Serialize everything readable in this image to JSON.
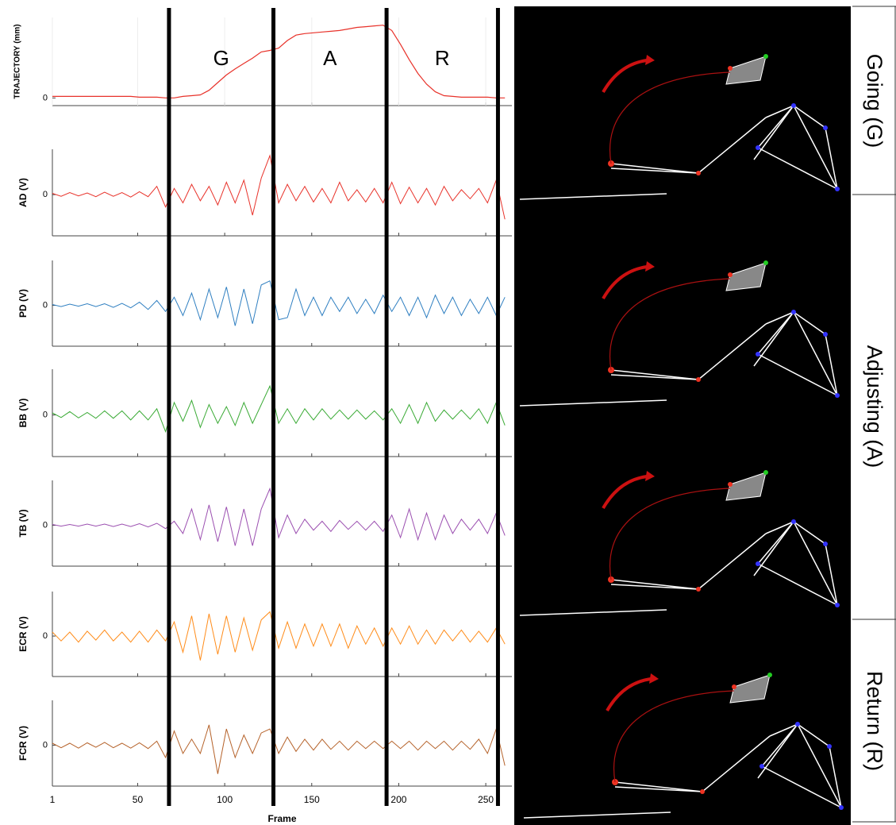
{
  "chart_data": {
    "type": "line",
    "layout": "stacked",
    "x": [
      1,
      6,
      11,
      16,
      21,
      26,
      31,
      36,
      41,
      46,
      51,
      56,
      61,
      66,
      71,
      76,
      81,
      86,
      91,
      96,
      101,
      106,
      111,
      116,
      121,
      126,
      131,
      136,
      141,
      146,
      151,
      156,
      161,
      166,
      171,
      176,
      181,
      186,
      191,
      196,
      201,
      206,
      211,
      216,
      221,
      226,
      231,
      236,
      241,
      246,
      251,
      256,
      261
    ],
    "xlim": [
      1,
      265
    ],
    "xticks": [
      1,
      50,
      100,
      150,
      200,
      250
    ],
    "xlabel": "Frame",
    "phase_bounds": [
      68,
      128,
      193,
      257
    ],
    "phase_labels": [
      "G",
      "A",
      "R"
    ],
    "series": [
      {
        "name": "TRAJECTORY (mm)",
        "color": "#e8322a",
        "ylim": [
          -0.1,
          1.05
        ],
        "yticks": [
          0
        ],
        "values": [
          0.02,
          0.02,
          0.02,
          0.02,
          0.02,
          0.02,
          0.02,
          0.02,
          0.02,
          0.02,
          0.01,
          0.01,
          0.01,
          0,
          0,
          0.02,
          0.03,
          0.04,
          0.1,
          0.2,
          0.3,
          0.38,
          0.45,
          0.52,
          0.6,
          0.62,
          0.65,
          0.75,
          0.82,
          0.84,
          0.85,
          0.86,
          0.87,
          0.88,
          0.9,
          0.92,
          0.93,
          0.94,
          0.95,
          0.88,
          0.7,
          0.5,
          0.32,
          0.18,
          0.08,
          0.03,
          0.02,
          0.01,
          0.01,
          0.01,
          0.01,
          0,
          0
        ]
      },
      {
        "name": "AD (V)",
        "color": "#e8322a",
        "ylim": [
          -1,
          1.1
        ],
        "yticks": [
          0
        ],
        "values": [
          0.03,
          -0.04,
          0.05,
          -0.03,
          0.04,
          -0.05,
          0.06,
          -0.04,
          0.05,
          -0.06,
          0.07,
          -0.05,
          0.2,
          -0.3,
          0.15,
          -0.2,
          0.25,
          -0.15,
          0.2,
          -0.25,
          0.3,
          -0.2,
          0.35,
          -0.5,
          0.4,
          0.95,
          -0.2,
          0.25,
          -0.15,
          0.2,
          -0.18,
          0.15,
          -0.2,
          0.3,
          -0.15,
          0.12,
          -0.18,
          0.15,
          -0.2,
          0.3,
          -0.22,
          0.18,
          -0.2,
          0.15,
          -0.25,
          0.2,
          -0.15,
          0.12,
          -0.1,
          0.15,
          -0.2,
          0.35,
          -0.6
        ]
      },
      {
        "name": "PD (V)",
        "color": "#2f7fc1",
        "ylim": [
          -1,
          1.1
        ],
        "yticks": [
          0
        ],
        "values": [
          0.02,
          -0.03,
          0.03,
          -0.02,
          0.04,
          -0.03,
          0.04,
          -0.05,
          0.05,
          -0.06,
          0.08,
          -0.1,
          0.12,
          -0.15,
          0.2,
          -0.25,
          0.3,
          -0.35,
          0.4,
          -0.3,
          0.45,
          -0.5,
          0.4,
          -0.45,
          0.5,
          0.6,
          -0.35,
          -0.3,
          0.4,
          -0.25,
          0.2,
          -0.25,
          0.2,
          -0.15,
          0.2,
          -0.2,
          0.15,
          -0.2,
          0.25,
          -0.15,
          0.2,
          -0.25,
          0.2,
          -0.3,
          0.25,
          -0.2,
          0.2,
          -0.25,
          0.15,
          -0.2,
          0.2,
          -0.25,
          0.2
        ]
      },
      {
        "name": "BB (V)",
        "color": "#3aaa35",
        "ylim": [
          -1,
          1.1
        ],
        "yticks": [
          0
        ],
        "values": [
          0.05,
          -0.06,
          0.08,
          -0.07,
          0.06,
          -0.08,
          0.1,
          -0.08,
          0.1,
          -0.12,
          0.1,
          -0.12,
          0.15,
          -0.4,
          0.3,
          -0.15,
          0.35,
          -0.3,
          0.25,
          -0.2,
          0.2,
          -0.25,
          0.3,
          -0.2,
          0.25,
          0.7,
          -0.2,
          0.15,
          -0.2,
          0.15,
          -0.12,
          0.15,
          -0.1,
          0.12,
          -0.1,
          0.12,
          -0.1,
          0.1,
          -0.12,
          0.15,
          -0.2,
          0.25,
          -0.2,
          0.3,
          -0.15,
          0.12,
          -0.1,
          0.12,
          -0.1,
          0.15,
          -0.2,
          0.3,
          -0.25
        ]
      },
      {
        "name": "TB (V)",
        "color": "#9b4fb0",
        "ylim": [
          -1,
          1.1
        ],
        "yticks": [
          0
        ],
        "values": [
          0.02,
          -0.02,
          0.02,
          -0.02,
          0.03,
          -0.02,
          0.03,
          -0.03,
          0.03,
          -0.03,
          0.04,
          -0.04,
          0.05,
          -0.08,
          0.1,
          -0.2,
          0.4,
          -0.35,
          0.5,
          -0.4,
          0.45,
          -0.5,
          0.4,
          -0.5,
          0.4,
          0.9,
          -0.3,
          0.25,
          -0.2,
          0.15,
          -0.12,
          0.1,
          -0.15,
          0.12,
          -0.1,
          0.1,
          -0.12,
          0.1,
          -0.15,
          0.25,
          -0.3,
          0.4,
          -0.35,
          0.3,
          -0.35,
          0.25,
          -0.2,
          0.15,
          -0.12,
          0.15,
          -0.2,
          0.3,
          -0.25
        ]
      },
      {
        "name": "ECR (V)",
        "color": "#ff8c1a",
        "ylim": [
          -1,
          1.1
        ],
        "yticks": [
          0
        ],
        "values": [
          0.1,
          -0.12,
          0.1,
          -0.15,
          0.12,
          -0.1,
          0.15,
          -0.12,
          0.1,
          -0.15,
          0.12,
          -0.15,
          0.15,
          -0.12,
          0.35,
          -0.4,
          0.5,
          -0.6,
          0.55,
          -0.45,
          0.5,
          -0.4,
          0.45,
          -0.35,
          0.4,
          0.6,
          -0.3,
          0.35,
          -0.3,
          0.3,
          -0.25,
          0.3,
          -0.25,
          0.3,
          -0.3,
          0.25,
          -0.2,
          0.2,
          -0.25,
          0.2,
          -0.2,
          0.25,
          -0.2,
          0.15,
          -0.2,
          0.15,
          -0.12,
          0.15,
          -0.15,
          0.12,
          -0.15,
          0.2,
          -0.2
        ]
      },
      {
        "name": "FCR (V)",
        "color": "#b5622a",
        "ylim": [
          -1,
          1.1
        ],
        "yticks": [
          0
        ],
        "values": [
          0.05,
          -0.06,
          0.05,
          -0.07,
          0.06,
          -0.05,
          0.07,
          -0.06,
          0.05,
          -0.07,
          0.06,
          -0.08,
          0.1,
          -0.3,
          0.35,
          -0.2,
          0.15,
          -0.2,
          0.5,
          -0.7,
          0.4,
          -0.3,
          0.25,
          -0.2,
          0.3,
          0.4,
          -0.2,
          0.2,
          -0.15,
          0.15,
          -0.12,
          0.15,
          -0.1,
          0.1,
          -0.12,
          0.1,
          -0.08,
          0.1,
          -0.08,
          0.1,
          -0.08,
          0.1,
          -0.12,
          0.1,
          -0.08,
          0.1,
          -0.12,
          0.1,
          -0.1,
          0.15,
          -0.2,
          0.4,
          -0.5
        ]
      }
    ]
  },
  "side_labels": [
    "Going (G)",
    "Adjusting (A)",
    "Return (R)"
  ]
}
